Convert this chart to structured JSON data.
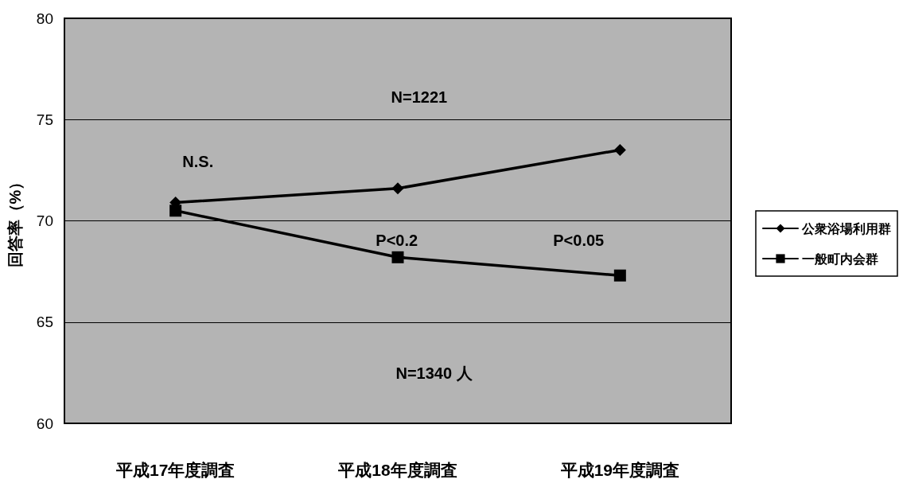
{
  "chart_data": {
    "type": "line",
    "ylabel": "回答率（%）",
    "categories": [
      "平成17年度調査",
      "平成18年度調査",
      "平成19年度調査"
    ],
    "series": [
      {
        "name": "公衆浴場利用群",
        "color": "#000000",
        "marker": "diamond",
        "values": [
          70.9,
          71.6,
          73.5
        ]
      },
      {
        "name": "一般町内会群",
        "color": "#000000",
        "marker": "square",
        "values": [
          70.5,
          68.2,
          67.3
        ]
      }
    ],
    "ylim": [
      60,
      80
    ],
    "yticks": [
      60,
      65,
      70,
      75,
      80
    ],
    "grid": "y",
    "legend": "right",
    "annotations": [
      "N=1221",
      "N.S.",
      "P<0.2",
      "P<0.05",
      "N=1340 人"
    ]
  }
}
